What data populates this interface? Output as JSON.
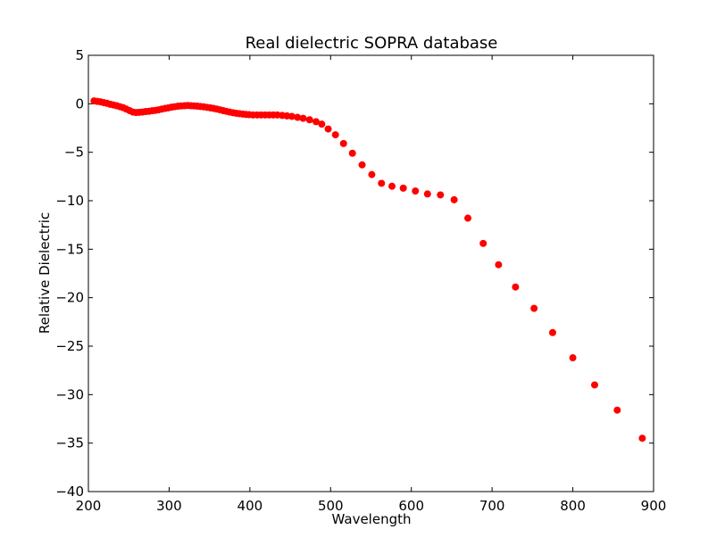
{
  "chart_data": {
    "type": "scatter",
    "title": "Real dielectric SOPRA database",
    "xlabel": "Wavelength",
    "ylabel": "Relative Dielectric",
    "xlim": [
      200,
      900
    ],
    "ylim": [
      -40,
      5
    ],
    "xticks": [
      200,
      300,
      400,
      500,
      600,
      700,
      800,
      900
    ],
    "yticks": [
      5,
      0,
      -5,
      -10,
      -15,
      -20,
      -25,
      -30,
      -35,
      -40
    ],
    "xtick_labels": [
      "200",
      "300",
      "400",
      "500",
      "600",
      "700",
      "800",
      "900"
    ],
    "ytick_labels": [
      "5",
      "0",
      "−5",
      "−10",
      "−15",
      "−20",
      "−25",
      "−30",
      "−35",
      "−40"
    ],
    "grid": false,
    "legend": false,
    "marker_color": "#ff0000",
    "series": [
      {
        "x": [
          207,
          211,
          215,
          219,
          223,
          227,
          231,
          235,
          239,
          243,
          247,
          251,
          255,
          259,
          263,
          267,
          271,
          275,
          279,
          283,
          287,
          291,
          295,
          299,
          303,
          307,
          311,
          315,
          319,
          323,
          327,
          331,
          335,
          339,
          343,
          347,
          351,
          355,
          359,
          363,
          367,
          371,
          375,
          379,
          383,
          387,
          391,
          395,
          399,
          404,
          409,
          414,
          419,
          424,
          429,
          434,
          440,
          446,
          452,
          459,
          466,
          474,
          482,
          489,
          497,
          506,
          516,
          527,
          539,
          551,
          563,
          576,
          590,
          605,
          620,
          636,
          653,
          670,
          689,
          708,
          729,
          752,
          775,
          800,
          827,
          855,
          886
        ],
        "y": [
          0.3,
          0.25,
          0.2,
          0.12,
          0.05,
          -0.05,
          -0.12,
          -0.2,
          -0.3,
          -0.4,
          -0.55,
          -0.7,
          -0.85,
          -0.9,
          -0.88,
          -0.85,
          -0.8,
          -0.78,
          -0.72,
          -0.68,
          -0.62,
          -0.55,
          -0.48,
          -0.42,
          -0.35,
          -0.3,
          -0.25,
          -0.22,
          -0.2,
          -0.18,
          -0.2,
          -0.22,
          -0.25,
          -0.28,
          -0.32,
          -0.37,
          -0.42,
          -0.48,
          -0.55,
          -0.62,
          -0.7,
          -0.78,
          -0.85,
          -0.92,
          -0.98,
          -1.02,
          -1.06,
          -1.1,
          -1.12,
          -1.15,
          -1.15,
          -1.15,
          -1.15,
          -1.15,
          -1.15,
          -1.15,
          -1.2,
          -1.25,
          -1.3,
          -1.4,
          -1.5,
          -1.65,
          -1.85,
          -2.1,
          -2.6,
          -3.2,
          -4.1,
          -5.1,
          -6.3,
          -7.3,
          -8.2,
          -8.5,
          -8.7,
          -9.0,
          -9.3,
          -9.4,
          -9.9,
          -11.8,
          -14.4,
          -16.6,
          -18.9,
          -21.1,
          -23.6,
          -26.2,
          -29.0,
          -31.6,
          -34.5
        ]
      }
    ]
  }
}
